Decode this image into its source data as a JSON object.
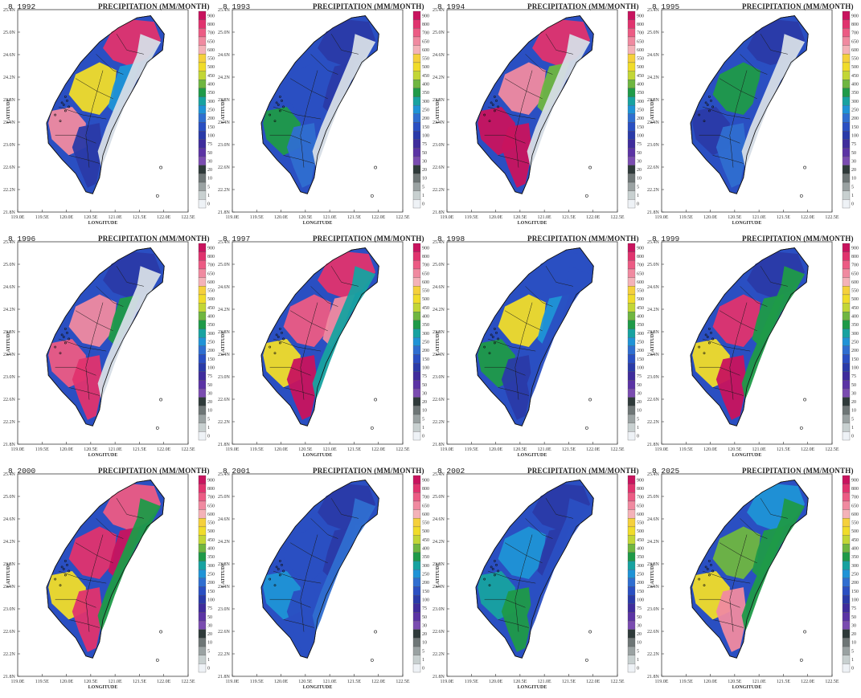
{
  "variable_label": "PRECIPITATION (MM/MONTH)",
  "x_axis_label": "LONGITUDE",
  "y_axis_label": "LATITUDE",
  "lat_ticks": [
    "25.4N",
    "25.0N",
    "24.6N",
    "24.2N",
    "23.8N",
    "23.4N",
    "23.0N",
    "22.6N",
    "22.2N",
    "21.8N"
  ],
  "lon_ticks": [
    "119.0E",
    "119.5E",
    "120.0E",
    "120.5E",
    "121.0E",
    "121.5E",
    "122.0E",
    "122.5E"
  ],
  "colorbar": {
    "labels": [
      "900",
      "800",
      "700",
      "650",
      "600",
      "550",
      "500",
      "450",
      "400",
      "350",
      "300",
      "250",
      "200",
      "150",
      "100",
      "75",
      "50",
      "30",
      "20",
      "10",
      "5",
      "1",
      "0"
    ],
    "colors": [
      "#c8135e",
      "#e0336e",
      "#ec5b84",
      "#f08aa0",
      "#f4b2b8",
      "#f5d03c",
      "#f0dc2a",
      "#c2d636",
      "#6fb640",
      "#1f9a48",
      "#17a2a0",
      "#1f93d6",
      "#2f6ed0",
      "#2a4fc2",
      "#2a3aa8",
      "#3f2c9c",
      "#5b33a4",
      "#7a4cb0",
      "#2f3a3a",
      "#6e7676",
      "#9aa2a2",
      "#c8d0d0",
      "#eef2f6"
    ]
  },
  "panels": [
    {
      "title": "8 1992",
      "regions": [
        [
          "north",
          "#e0336e"
        ],
        [
          "center",
          "#f0dc2a"
        ],
        [
          "east",
          "#1f93d6"
        ],
        [
          "southwest",
          "#f08aa0"
        ],
        [
          "south",
          "#2a3aa8"
        ],
        [
          "coast",
          "#d6dde6"
        ]
      ]
    },
    {
      "title": "8 1993",
      "regions": [
        [
          "north",
          "#2a3aa8"
        ],
        [
          "center",
          "#2a4fc2"
        ],
        [
          "east",
          "#2a3aa8"
        ],
        [
          "southwest",
          "#1f9a48"
        ],
        [
          "south",
          "#2f6ed0"
        ],
        [
          "coast",
          "#d6dde6"
        ]
      ]
    },
    {
      "title": "8 1994",
      "regions": [
        [
          "north",
          "#e0336e"
        ],
        [
          "center",
          "#f08aa0"
        ],
        [
          "east",
          "#6fb640"
        ],
        [
          "southwest",
          "#c8135e"
        ],
        [
          "south",
          "#c8135e"
        ],
        [
          "coast",
          "#d6dde6"
        ]
      ]
    },
    {
      "title": "8 1995",
      "regions": [
        [
          "north",
          "#2a3aa8"
        ],
        [
          "center",
          "#1f9a48"
        ],
        [
          "east",
          "#2a4fc2"
        ],
        [
          "southwest",
          "#2a3aa8"
        ],
        [
          "south",
          "#2f6ed0"
        ],
        [
          "coast",
          "#d6dde6"
        ]
      ]
    },
    {
      "title": "8 1996",
      "regions": [
        [
          "north",
          "#2a3aa8"
        ],
        [
          "center",
          "#f08aa0"
        ],
        [
          "east",
          "#1f9a48"
        ],
        [
          "southwest",
          "#ec5b84"
        ],
        [
          "south",
          "#e0336e"
        ],
        [
          "coast",
          "#d6dde6"
        ]
      ]
    },
    {
      "title": "8 1997",
      "regions": [
        [
          "north",
          "#e0336e"
        ],
        [
          "center",
          "#ec5b84"
        ],
        [
          "east",
          "#f08aa0"
        ],
        [
          "southwest",
          "#f0dc2a"
        ],
        [
          "south",
          "#c8135e"
        ],
        [
          "coast",
          "#17a2a0"
        ]
      ]
    },
    {
      "title": "8 1998",
      "regions": [
        [
          "north",
          "#2a4fc2"
        ],
        [
          "center",
          "#f0dc2a"
        ],
        [
          "east",
          "#1f93d6"
        ],
        [
          "southwest",
          "#1f9a48"
        ],
        [
          "south",
          "#2a3aa8"
        ],
        [
          "coast",
          "#2a4fc2"
        ]
      ]
    },
    {
      "title": "8 1999",
      "regions": [
        [
          "north",
          "#2a3aa8"
        ],
        [
          "center",
          "#e0336e"
        ],
        [
          "east",
          "#1f9a48"
        ],
        [
          "southwest",
          "#f0dc2a"
        ],
        [
          "south",
          "#c8135e"
        ],
        [
          "coast",
          "#1f9a48"
        ]
      ]
    },
    {
      "title": "8 2000",
      "regions": [
        [
          "north",
          "#ec5b84"
        ],
        [
          "center",
          "#e0336e"
        ],
        [
          "east",
          "#c8135e"
        ],
        [
          "southwest",
          "#f0dc2a"
        ],
        [
          "south",
          "#e0336e"
        ],
        [
          "coast",
          "#1f9a48"
        ]
      ]
    },
    {
      "title": "8 2001",
      "regions": [
        [
          "north",
          "#2a3aa8"
        ],
        [
          "center",
          "#2a4fc2"
        ],
        [
          "east",
          "#2a3aa8"
        ],
        [
          "southwest",
          "#1f93d6"
        ],
        [
          "south",
          "#2a4fc2"
        ],
        [
          "coast",
          "#2f6ed0"
        ]
      ]
    },
    {
      "title": "8 2002",
      "regions": [
        [
          "north",
          "#2a3aa8"
        ],
        [
          "center",
          "#1f93d6"
        ],
        [
          "east",
          "#2a3aa8"
        ],
        [
          "southwest",
          "#17a2a0"
        ],
        [
          "south",
          "#1f9a48"
        ],
        [
          "coast",
          "#2a4fc2"
        ]
      ]
    },
    {
      "title": "8 2025",
      "regions": [
        [
          "north",
          "#1f93d6"
        ],
        [
          "center",
          "#6fb640"
        ],
        [
          "east",
          "#1f9a48"
        ],
        [
          "southwest",
          "#f0dc2a"
        ],
        [
          "south",
          "#f08aa0"
        ],
        [
          "coast",
          "#1f9a48"
        ]
      ]
    }
  ]
}
